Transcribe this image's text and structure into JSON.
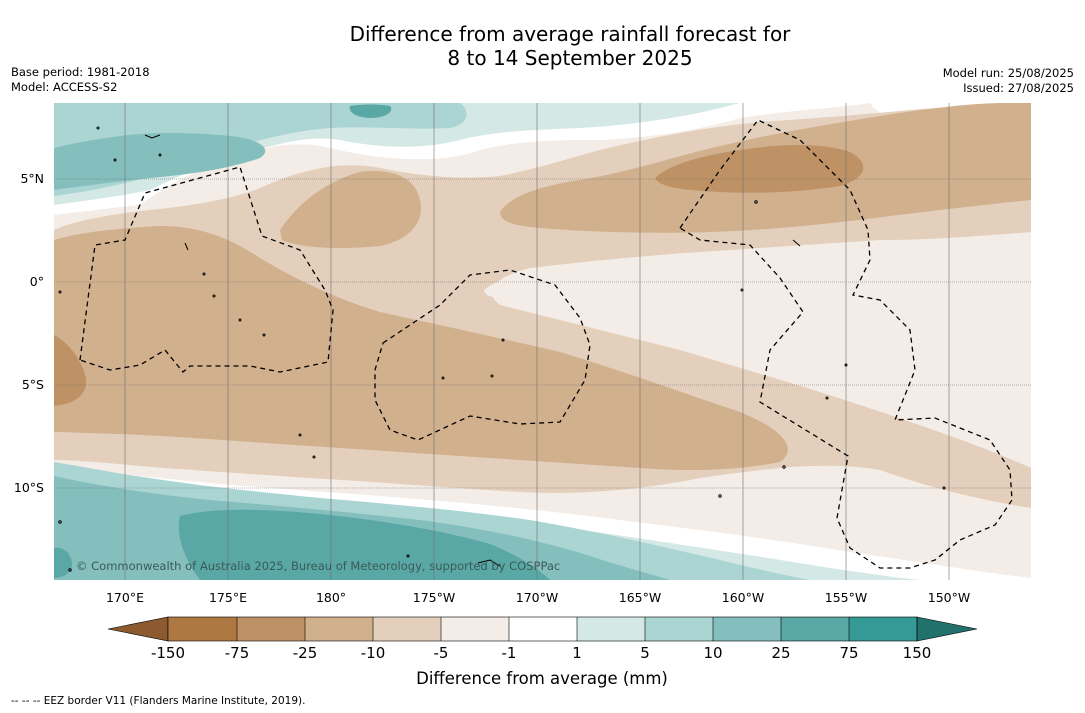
{
  "title": {
    "line1": "Difference from average rainfall forecast for",
    "line2": "8 to 14 September 2025"
  },
  "meta": {
    "base_period": "Base period: 1981-2018",
    "model": "Model: ACCESS-S2",
    "model_run": "Model run: 25/08/2025",
    "issued": "Issued: 27/08/2025"
  },
  "map": {
    "lon_labels": [
      "170°E",
      "175°E",
      "180°",
      "175°W",
      "170°W",
      "165°W",
      "160°W",
      "155°W",
      "150°W"
    ],
    "lat_labels": [
      "5°N",
      "0°",
      "5°S",
      "10°S"
    ],
    "copyright": "© Commonwealth of Australia 2025, Bureau of Meteorology, supported by COSPPac"
  },
  "colorbar": {
    "title": "Difference from average (mm)",
    "ticks": [
      "-150",
      "-75",
      "-25",
      "-10",
      "-5",
      "-1",
      "1",
      "5",
      "10",
      "25",
      "75",
      "150"
    ],
    "colors": {
      "lt_-150": "#8c5a2e",
      "-150_-75": "#ad7842",
      "-75_-25": "#be9264",
      "-25_-10": "#d1b08e",
      "-10_-5": "#e3cfbb",
      "-5_-1": "#f4ece6",
      "-1_1": "#ffffff",
      "1_5": "#d4e8e6",
      "5_10": "#abd5d3",
      "10_25": "#84bfbe",
      "25_75": "#5aa8a6",
      "75_150": "#359a95",
      "gt_150": "#23716d"
    }
  },
  "legend_note": "--  --  -- EEZ border V11 (Flanders Marine Institute, 2019)."
}
